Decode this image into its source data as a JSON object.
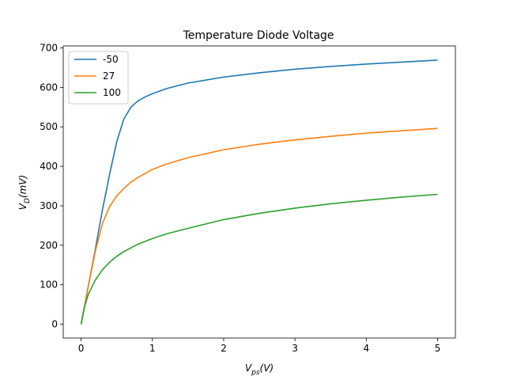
{
  "chart_data": {
    "type": "line",
    "title": "Temperature Diode Voltage",
    "xlabel": {
      "main": "V",
      "sub": "ps",
      "unit": "(V)"
    },
    "ylabel": {
      "main": "V",
      "sub": "D",
      "unit": "(mV)"
    },
    "xlim": [
      -0.25,
      5.25
    ],
    "ylim": [
      -35,
      705
    ],
    "xticks": [
      0,
      1,
      2,
      3,
      4,
      5
    ],
    "yticks": [
      0,
      100,
      200,
      300,
      400,
      500,
      600,
      700
    ],
    "grid": false,
    "legend_position": "top-left",
    "series": [
      {
        "name": "-50",
        "color": "#1f77b4",
        "x": [
          0,
          0.1,
          0.2,
          0.3,
          0.4,
          0.5,
          0.6,
          0.7,
          0.8,
          0.9,
          1.0,
          1.2,
          1.5,
          2.0,
          2.5,
          3.0,
          3.5,
          4.0,
          4.5,
          5.0
        ],
        "y": [
          0,
          95,
          190,
          290,
          380,
          462,
          520,
          550,
          566,
          576,
          584,
          597,
          611,
          626,
          637,
          646,
          653,
          659,
          664,
          669
        ]
      },
      {
        "name": "27",
        "color": "#ff7f0e",
        "x": [
          0,
          0.1,
          0.2,
          0.3,
          0.4,
          0.5,
          0.6,
          0.7,
          0.8,
          1.0,
          1.2,
          1.5,
          2.0,
          2.5,
          3.0,
          3.5,
          4.0,
          4.5,
          5.0
        ],
        "y": [
          0,
          95,
          185,
          255,
          298,
          325,
          344,
          360,
          372,
          392,
          406,
          422,
          442,
          456,
          467,
          476,
          484,
          490,
          496
        ]
      },
      {
        "name": "100",
        "color": "#2ca02c",
        "x": [
          0,
          0.05,
          0.1,
          0.2,
          0.3,
          0.4,
          0.5,
          0.6,
          0.8,
          1.0,
          1.2,
          1.5,
          2.0,
          2.5,
          3.0,
          3.5,
          4.0,
          4.5,
          5.0
        ],
        "y": [
          0,
          45,
          75,
          112,
          138,
          157,
          172,
          184,
          203,
          217,
          229,
          243,
          265,
          281,
          294,
          305,
          314,
          322,
          329
        ]
      }
    ]
  }
}
